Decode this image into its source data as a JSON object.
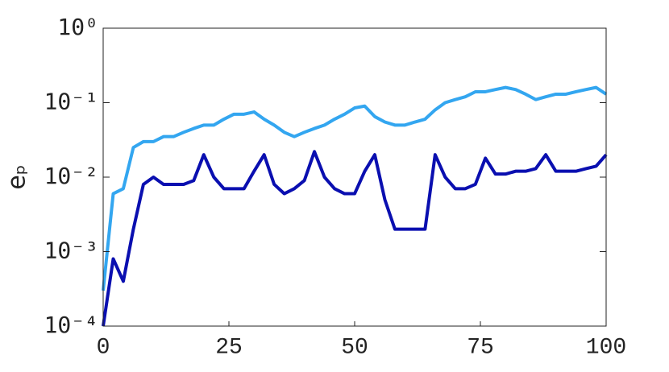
{
  "chart_data": {
    "type": "line",
    "y_label": "eₚ",
    "x": [
      0,
      2,
      4,
      6,
      8,
      10,
      12,
      14,
      16,
      18,
      20,
      22,
      24,
      26,
      28,
      30,
      32,
      34,
      36,
      38,
      40,
      42,
      44,
      46,
      48,
      50,
      52,
      54,
      56,
      58,
      60,
      62,
      64,
      66,
      68,
      70,
      72,
      74,
      76,
      78,
      80,
      82,
      84,
      86,
      88,
      90,
      92,
      94,
      96,
      98,
      100
    ],
    "series": [
      {
        "color": "#33a6f0",
        "values": [
          0.0003,
          0.006,
          0.007,
          0.025,
          0.03,
          0.03,
          0.035,
          0.035,
          0.04,
          0.045,
          0.05,
          0.05,
          0.06,
          0.07,
          0.07,
          0.075,
          0.06,
          0.05,
          0.04,
          0.035,
          0.04,
          0.045,
          0.05,
          0.06,
          0.07,
          0.085,
          0.09,
          0.065,
          0.055,
          0.05,
          0.05,
          0.055,
          0.06,
          0.08,
          0.1,
          0.11,
          0.12,
          0.14,
          0.14,
          0.15,
          0.16,
          0.15,
          0.13,
          0.11,
          0.12,
          0.13,
          0.13,
          0.14,
          0.15,
          0.16,
          0.13
        ]
      },
      {
        "color": "#0a0fb0",
        "values": [
          0.0001,
          0.0008,
          0.0004,
          0.002,
          0.008,
          0.01,
          0.008,
          0.008,
          0.008,
          0.009,
          0.02,
          0.01,
          0.007,
          0.007,
          0.007,
          0.012,
          0.02,
          0.008,
          0.006,
          0.007,
          0.009,
          0.022,
          0.01,
          0.007,
          0.006,
          0.006,
          0.012,
          0.02,
          0.005,
          0.002,
          0.002,
          0.002,
          0.002,
          0.02,
          0.01,
          0.007,
          0.007,
          0.008,
          0.018,
          0.011,
          0.011,
          0.012,
          0.012,
          0.013,
          0.02,
          0.012,
          0.012,
          0.012,
          0.013,
          0.014,
          0.02
        ]
      }
    ],
    "xlim": [
      0,
      100
    ],
    "xticks": [
      0,
      25,
      50,
      75,
      100
    ],
    "ylim": [
      0.0001,
      1
    ],
    "log_y": true,
    "yticks": [
      {
        "value": 1,
        "label": "10⁰"
      },
      {
        "value": 0.1,
        "label": "10⁻¹"
      },
      {
        "value": 0.01,
        "label": "10⁻²"
      },
      {
        "value": 0.001,
        "label": "10⁻³"
      },
      {
        "value": 0.0001,
        "label": "10⁻⁴"
      }
    ]
  }
}
